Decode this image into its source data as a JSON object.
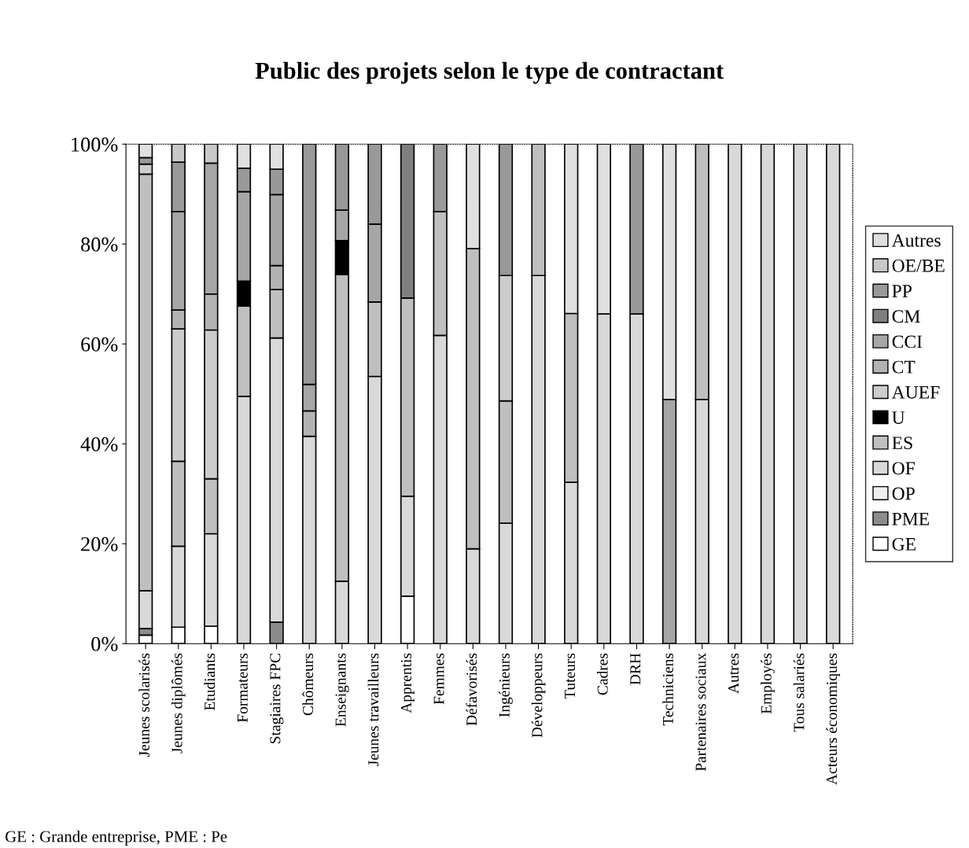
{
  "chart_data": {
    "type": "bar",
    "stacked": true,
    "title": "Public des projets selon le type de contractant",
    "categories": [
      "Jeunes scolarisés",
      "Jeunes diplômés",
      "Etudiants",
      "Formateurs",
      "Stagiaires FPC",
      "Chômeurs",
      "Enseignants",
      "Jeunes travailleurs",
      "Apprentis",
      "Femmes",
      "Défavorisés",
      "Ingénieurs",
      "Développeurs",
      "Tuteurs",
      "Cadres",
      "DRH",
      "Techniciens",
      "Partenaires sociaux",
      "Autres",
      "Employés",
      "Tous salariés",
      "Acteurs économiques"
    ],
    "ylim": [
      0,
      100
    ],
    "yticks": [
      {
        "value": 0,
        "label": "0%"
      },
      {
        "value": 20,
        "label": "20%"
      },
      {
        "value": 40,
        "label": "40%"
      },
      {
        "value": 60,
        "label": "60%"
      },
      {
        "value": 80,
        "label": "80%"
      },
      {
        "value": 100,
        "label": "100%"
      }
    ],
    "grid": false,
    "legend": "right",
    "series": [
      {
        "name": "GE",
        "color": "#ffffff",
        "values": [
          1.7,
          3.3,
          3.5,
          null,
          null,
          null,
          null,
          null,
          9.5,
          null,
          null,
          null,
          null,
          null,
          null,
          null,
          null,
          null,
          null,
          null,
          null,
          null
        ]
      },
      {
        "name": "PME",
        "color": "#8c8c8c",
        "values": [
          1.3,
          null,
          null,
          null,
          4.3,
          null,
          null,
          null,
          null,
          null,
          null,
          null,
          null,
          null,
          null,
          null,
          null,
          null,
          null,
          null,
          null,
          null
        ]
      },
      {
        "name": "OP",
        "color": "#eeeeee",
        "values": [
          null,
          null,
          null,
          null,
          null,
          null,
          null,
          null,
          null,
          null,
          null,
          null,
          null,
          null,
          null,
          null,
          null,
          null,
          null,
          null,
          null,
          null
        ]
      },
      {
        "name": "OF",
        "color": "#d9d9d9",
        "values": [
          7.6,
          16.2,
          18.5,
          49.5,
          56.9,
          41.5,
          12.5,
          53.5,
          20,
          61.7,
          19,
          24.1,
          73.7,
          32.3,
          66,
          66,
          null,
          48.9,
          100,
          100,
          100,
          100
        ]
      },
      {
        "name": "ES",
        "color": "#bfbfbf",
        "values": [
          83.4,
          17,
          11,
          18.1,
          9.7,
          null,
          61.4,
          14.9,
          39.7,
          24.8,
          60.1,
          24.5,
          26.3,
          33.8,
          null,
          null,
          null,
          51.1,
          null,
          null,
          null,
          null
        ]
      },
      {
        "name": "U",
        "color": "#000000",
        "values": [
          null,
          null,
          null,
          5,
          null,
          null,
          6.8,
          null,
          null,
          null,
          null,
          null,
          null,
          null,
          null,
          null,
          null,
          null,
          null,
          null,
          null,
          null
        ]
      },
      {
        "name": "AUEF",
        "color": "#cccccc",
        "values": [
          2,
          26.5,
          29.8,
          null,
          null,
          null,
          null,
          null,
          null,
          null,
          null,
          25.1,
          null,
          null,
          null,
          null,
          null,
          null,
          null,
          null,
          null,
          null
        ]
      },
      {
        "name": "CT",
        "color": "#b3b3b3",
        "values": [
          null,
          3.8,
          7.2,
          null,
          4.8,
          5.1,
          null,
          null,
          null,
          null,
          null,
          null,
          null,
          null,
          null,
          null,
          null,
          null,
          null,
          null,
          null,
          null
        ]
      },
      {
        "name": "CCI",
        "color": "#a6a6a6",
        "values": [
          null,
          19.7,
          26.2,
          17.9,
          14.2,
          5.3,
          6.1,
          15.6,
          null,
          null,
          null,
          null,
          null,
          null,
          null,
          null,
          48.9,
          null,
          null,
          null,
          null,
          null
        ]
      },
      {
        "name": "CM",
        "color": "#7f7f7f",
        "values": [
          null,
          null,
          null,
          null,
          null,
          null,
          null,
          null,
          30.8,
          null,
          null,
          null,
          null,
          null,
          null,
          null,
          null,
          null,
          null,
          null,
          null,
          null
        ]
      },
      {
        "name": "PP",
        "color": "#999999",
        "values": [
          1.3,
          9.9,
          null,
          4.7,
          5.1,
          48.1,
          13.2,
          16,
          null,
          13.5,
          null,
          26.3,
          null,
          null,
          null,
          34,
          null,
          null,
          null,
          null,
          null,
          null
        ]
      },
      {
        "name": "OE/BE",
        "color": "#c8c8c8",
        "values": [
          null,
          3.6,
          3.8,
          null,
          null,
          null,
          null,
          null,
          null,
          null,
          null,
          null,
          null,
          null,
          null,
          null,
          null,
          null,
          null,
          null,
          null,
          null
        ]
      },
      {
        "name": "Autres",
        "color": "#e0e0e0",
        "values": [
          2.7,
          null,
          null,
          4.8,
          5,
          null,
          null,
          null,
          null,
          null,
          20.9,
          null,
          null,
          33.9,
          34,
          null,
          51.1,
          null,
          null,
          null,
          null,
          null
        ]
      }
    ],
    "annotations": [
      "GE : Grande entreprise, PME : Pe"
    ]
  }
}
